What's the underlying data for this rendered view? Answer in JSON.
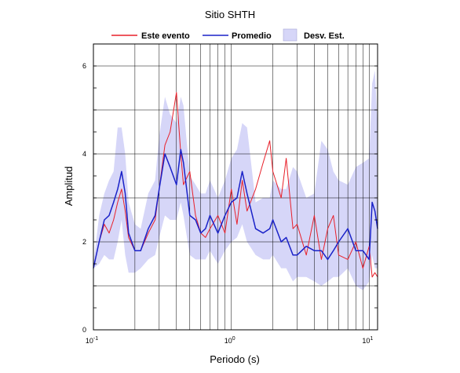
{
  "chart_data": {
    "type": "line",
    "title": "Sitio SHTH",
    "xlabel": "Periodo (s)",
    "ylabel": "Amplitud",
    "x_scale": "log",
    "xlim": [
      0.1,
      11.5
    ],
    "ylim": [
      0,
      6.5
    ],
    "x_tick_labels": [
      {
        "value": 0.1,
        "base": "10",
        "exp": "-1"
      },
      {
        "value": 1,
        "base": "10",
        "exp": "0"
      },
      {
        "value": 10,
        "base": "10",
        "exp": "1"
      }
    ],
    "y_ticks": [
      0,
      2,
      4,
      6
    ],
    "grid": "on",
    "legend_position": "top",
    "legend": [
      {
        "label": "Este evento",
        "kind": "line",
        "color": "#e8202a"
      },
      {
        "label": "Promedio",
        "kind": "line",
        "color": "#1a22c8"
      },
      {
        "label": "Desv. Est.",
        "kind": "patch",
        "color": "#d6d6f8"
      }
    ],
    "x": [
      0.1,
      0.11,
      0.12,
      0.13,
      0.14,
      0.15,
      0.16,
      0.17,
      0.18,
      0.2,
      0.22,
      0.25,
      0.28,
      0.3,
      0.33,
      0.36,
      0.4,
      0.43,
      0.45,
      0.5,
      0.55,
      0.6,
      0.65,
      0.7,
      0.8,
      0.9,
      1.0,
      1.1,
      1.2,
      1.3,
      1.5,
      1.7,
      1.9,
      2.0,
      2.3,
      2.5,
      2.8,
      3.0,
      3.5,
      4.0,
      4.5,
      5.0,
      5.5,
      6.0,
      7.0,
      8.0,
      9.0,
      10.0,
      10.5,
      11.0,
      11.5
    ],
    "series": [
      {
        "name": "Este evento",
        "color": "#e8202a",
        "values": [
          1.4,
          2.0,
          2.4,
          2.2,
          2.5,
          2.9,
          3.2,
          2.7,
          2.1,
          1.8,
          1.8,
          2.2,
          2.5,
          3.2,
          4.2,
          4.5,
          5.4,
          4.0,
          3.3,
          3.6,
          2.6,
          2.2,
          2.1,
          2.3,
          2.6,
          2.2,
          3.2,
          2.4,
          3.4,
          2.7,
          3.2,
          3.8,
          4.3,
          3.6,
          3.0,
          3.9,
          2.3,
          2.4,
          1.7,
          2.6,
          1.6,
          2.3,
          2.6,
          1.7,
          1.6,
          2.0,
          1.4,
          1.9,
          1.2,
          1.3,
          1.2
        ]
      },
      {
        "name": "Promedio",
        "color": "#1a22c8",
        "values": [
          1.4,
          2.0,
          2.5,
          2.6,
          2.9,
          3.2,
          3.6,
          3.1,
          2.2,
          1.8,
          1.8,
          2.3,
          2.6,
          3.2,
          4.0,
          3.7,
          3.3,
          4.1,
          3.8,
          2.6,
          2.5,
          2.2,
          2.3,
          2.6,
          2.2,
          2.6,
          2.9,
          3.0,
          3.6,
          3.1,
          2.3,
          2.2,
          2.3,
          2.5,
          2.0,
          2.1,
          1.7,
          1.7,
          1.9,
          1.8,
          1.8,
          1.6,
          1.8,
          2.0,
          2.3,
          1.8,
          1.8,
          1.6,
          2.9,
          2.7,
          2.3
        ]
      },
      {
        "name": "Desv. Est.",
        "kind": "band",
        "color": "#d6d6f8",
        "lower": [
          1.4,
          1.5,
          1.7,
          1.6,
          1.6,
          2.0,
          2.5,
          1.7,
          1.3,
          1.3,
          1.4,
          1.6,
          1.7,
          2.1,
          2.6,
          2.5,
          2.5,
          2.9,
          2.6,
          1.7,
          1.6,
          1.6,
          1.6,
          1.8,
          1.5,
          1.8,
          2.0,
          2.1,
          2.4,
          2.0,
          1.7,
          1.6,
          1.6,
          1.7,
          1.4,
          1.4,
          1.1,
          1.2,
          1.2,
          1.1,
          1.0,
          1.1,
          1.2,
          1.2,
          1.4,
          1.0,
          0.9,
          1.1,
          1.7,
          1.4,
          1.4
        ],
        "upper": [
          1.5,
          2.6,
          3.1,
          3.4,
          3.6,
          4.6,
          4.6,
          4.0,
          2.9,
          2.4,
          2.3,
          3.1,
          3.4,
          4.4,
          5.3,
          4.9,
          4.7,
          5.3,
          5.1,
          3.5,
          3.3,
          3.1,
          3.1,
          3.4,
          3.0,
          3.4,
          3.9,
          4.1,
          4.7,
          4.6,
          2.9,
          3.0,
          3.0,
          3.4,
          3.2,
          3.2,
          3.7,
          3.6,
          3.0,
          3.1,
          4.3,
          4.1,
          3.6,
          3.4,
          3.3,
          3.7,
          3.8,
          3.9,
          5.6,
          5.9,
          4.6
        ]
      }
    ]
  }
}
